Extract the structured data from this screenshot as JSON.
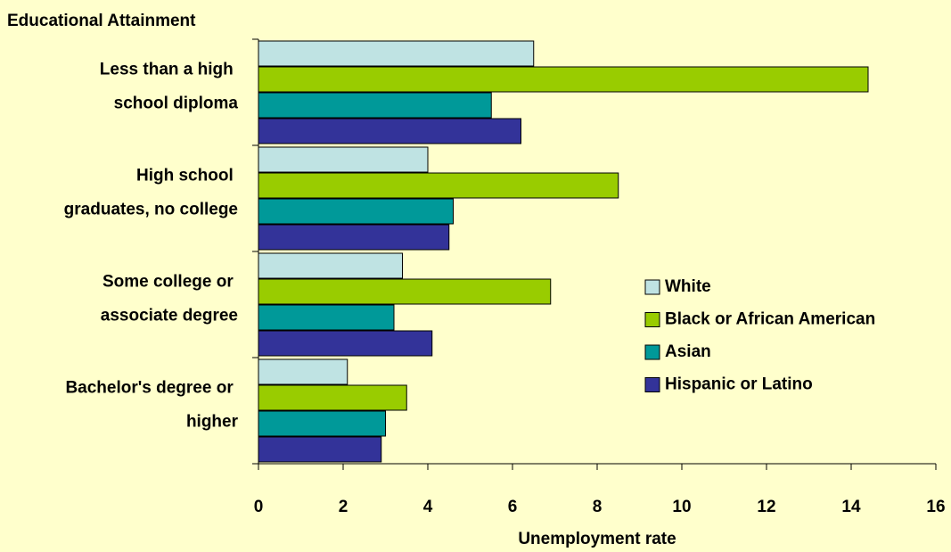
{
  "chart_data": {
    "type": "barh",
    "y_axis_title": "Educational Attainment",
    "x_axis_title": "Unemployment rate",
    "categories": [
      "Less than a high school diploma",
      "High school graduates, no college",
      "Some college or associate degree",
      "Bachelor's degree or higher"
    ],
    "series": [
      {
        "name": "White",
        "color": "#bfe3e3",
        "values": [
          6.5,
          4.0,
          3.4,
          2.1
        ]
      },
      {
        "name": "Black or African American",
        "color": "#99cc00",
        "values": [
          14.4,
          8.5,
          6.9,
          3.5
        ]
      },
      {
        "name": "Asian",
        "color": "#009999",
        "values": [
          5.5,
          4.6,
          3.2,
          3.0
        ]
      },
      {
        "name": "Hispanic or Latino",
        "color": "#333399",
        "values": [
          6.2,
          4.5,
          4.1,
          2.9
        ]
      }
    ],
    "xlim": [
      0,
      16
    ],
    "xticks": [
      0,
      2,
      4,
      6,
      8,
      10,
      12,
      14,
      16
    ],
    "legend": "right"
  }
}
